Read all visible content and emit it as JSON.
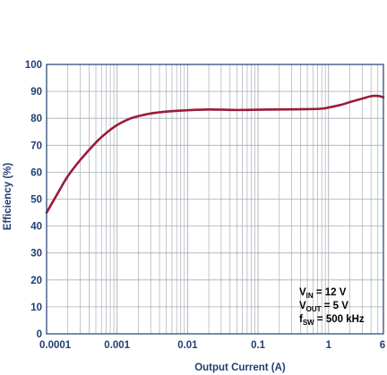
{
  "chart_data": {
    "type": "line",
    "title": "",
    "xlabel": "Output Current (A)",
    "ylabel": "Efficiency (%)",
    "x_scale": "log",
    "xlim": [
      0.0001,
      6
    ],
    "ylim": [
      0,
      100
    ],
    "x_ticks": [
      {
        "value": 0.0001,
        "label": "0.0001"
      },
      {
        "value": 0.001,
        "label": "0.001"
      },
      {
        "value": 0.01,
        "label": "0.01"
      },
      {
        "value": 0.1,
        "label": "0.1"
      },
      {
        "value": 1,
        "label": "1"
      },
      {
        "value": 6,
        "label": "6"
      }
    ],
    "y_ticks": [
      {
        "value": 0,
        "label": "0"
      },
      {
        "value": 10,
        "label": "10"
      },
      {
        "value": 20,
        "label": "20"
      },
      {
        "value": 30,
        "label": "30"
      },
      {
        "value": 40,
        "label": "40"
      },
      {
        "value": 50,
        "label": "50"
      },
      {
        "value": 60,
        "label": "60"
      },
      {
        "value": 70,
        "label": "70"
      },
      {
        "value": 80,
        "label": "80"
      },
      {
        "value": 90,
        "label": "90"
      },
      {
        "value": 100,
        "label": "100"
      }
    ],
    "grid": true,
    "series": [
      {
        "color": "#9b1b3a",
        "x": [
          0.0001,
          0.00015,
          0.0002,
          0.0003,
          0.0005,
          0.0007,
          0.001,
          0.0015,
          0.002,
          0.003,
          0.005,
          0.01,
          0.02,
          0.05,
          0.1,
          0.2,
          0.5,
          0.8,
          1,
          1.5,
          2,
          3,
          4,
          5,
          6
        ],
        "y": [
          45,
          53,
          58.5,
          64.5,
          71,
          74.5,
          77.5,
          79.8,
          80.8,
          81.8,
          82.5,
          83,
          83.3,
          83.1,
          83.2,
          83.3,
          83.4,
          83.6,
          84,
          85,
          86,
          87.3,
          88.2,
          88.3,
          87.8
        ]
      }
    ],
    "annotation": [
      {
        "main": "V",
        "sub": "IN",
        "rest": " = 12 V"
      },
      {
        "main": "V",
        "sub": "OUT",
        "rest": " = 5 V"
      },
      {
        "main": "f",
        "sub": "SW",
        "rest": " = 500 kHz"
      }
    ],
    "colors": {
      "axis": "#1f3f73",
      "grid": "#a8aeb6",
      "tick_text": "#1f3f73",
      "annotation_text": "#000000"
    }
  }
}
